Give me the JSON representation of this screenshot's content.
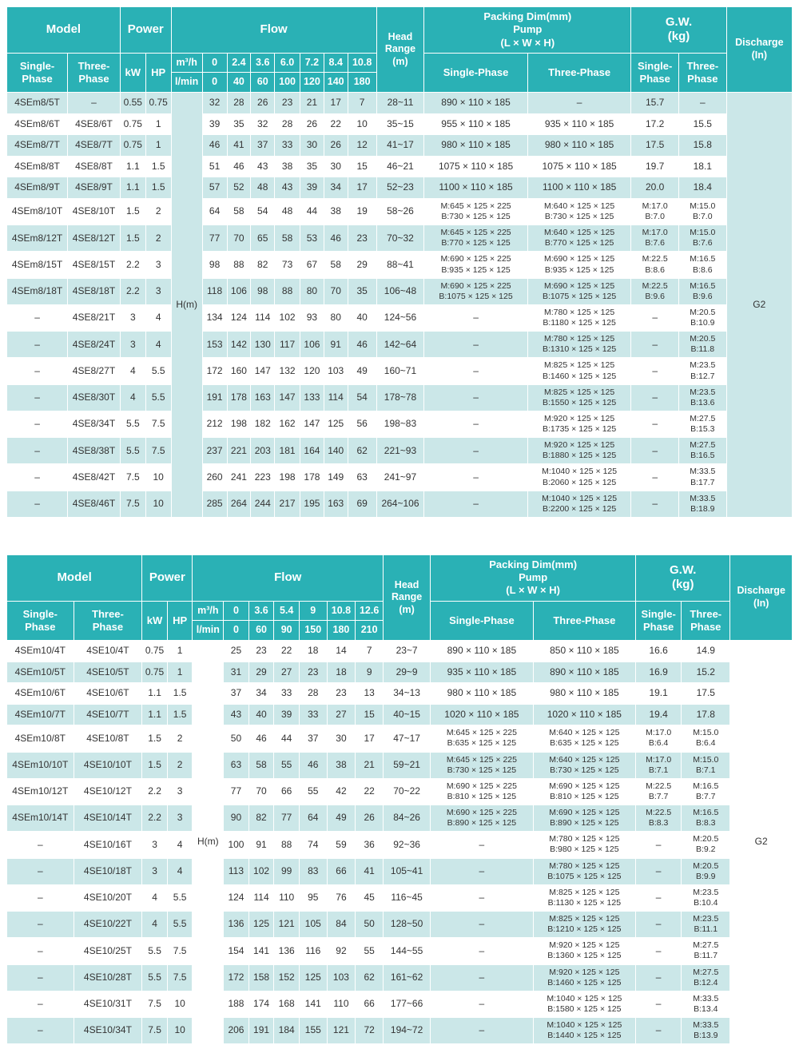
{
  "colors": {
    "header_bg": "#2ab1b5",
    "row_alt_bg": "#cbe7e8",
    "row_bg": "#ffffff",
    "header_text": "#ffffff",
    "body_text": "#333333"
  },
  "labels": {
    "model": "Model",
    "power": "Power",
    "flow": "Flow",
    "head_range": "Head\nRange\n(m)",
    "packing": "Packing Dim(mm)\nPump\n(L × W × H)",
    "gw": "G.W.\n(kg)",
    "discharge": "Discharge\n(In)",
    "single_phase_2line": "Single-\nPhase",
    "three_phase_2line": "Three-\nPhase",
    "single_phase": "Single-Phase",
    "three_phase": "Three-Phase",
    "kw": "kW",
    "hp": "HP",
    "m3h": "m³/h",
    "lmin": "l/min"
  },
  "tables": [
    {
      "series": "4SE8",
      "h_label": "H(m)",
      "discharge_value": "G2",
      "flow_m3h": [
        "0",
        "2.4",
        "3.6",
        "6.0",
        "7.2",
        "8.4",
        "10.8"
      ],
      "flow_lmin": [
        "0",
        "40",
        "60",
        "100",
        "120",
        "140",
        "180"
      ],
      "rows": [
        [
          "4SEm8/5T",
          "–",
          "0.55",
          "0.75",
          [
            "32",
            "28",
            "26",
            "23",
            "21",
            "17",
            "7"
          ],
          "28~11",
          "890 × 110 × 185",
          "–",
          "15.7",
          "–"
        ],
        [
          "4SEm8/6T",
          "4SE8/6T",
          "0.75",
          "1",
          [
            "39",
            "35",
            "32",
            "28",
            "26",
            "22",
            "10"
          ],
          "35~15",
          "955 × 110 × 185",
          "935 × 110 × 185",
          "17.2",
          "15.5"
        ],
        [
          "4SEm8/7T",
          "4SE8/7T",
          "0.75",
          "1",
          [
            "46",
            "41",
            "37",
            "33",
            "30",
            "26",
            "12"
          ],
          "41~17",
          "980 × 110 × 185",
          "980 × 110 × 185",
          "17.5",
          "15.8"
        ],
        [
          "4SEm8/8T",
          "4SE8/8T",
          "1.1",
          "1.5",
          [
            "51",
            "46",
            "43",
            "38",
            "35",
            "30",
            "15"
          ],
          "46~21",
          "1075 × 110 × 185",
          "1075 × 110 × 185",
          "19.7",
          "18.1"
        ],
        [
          "4SEm8/9T",
          "4SE8/9T",
          "1.1",
          "1.5",
          [
            "57",
            "52",
            "48",
            "43",
            "39",
            "34",
            "17"
          ],
          "52~23",
          "1100 × 110 × 185",
          "1100 × 110 × 185",
          "20.0",
          "18.4"
        ],
        [
          "4SEm8/10T",
          "4SE8/10T",
          "1.5",
          "2",
          [
            "64",
            "58",
            "54",
            "48",
            "44",
            "38",
            "19"
          ],
          "58~26",
          [
            "M:645 × 125 × 225",
            "B:730 × 125 × 125"
          ],
          [
            "M:640 × 125 × 125",
            "B:730 × 125 × 125"
          ],
          [
            "M:17.0",
            "B:7.0"
          ],
          [
            "M:15.0",
            "B:7.0"
          ]
        ],
        [
          "4SEm8/12T",
          "4SE8/12T",
          "1.5",
          "2",
          [
            "77",
            "70",
            "65",
            "58",
            "53",
            "46",
            "23"
          ],
          "70~32",
          [
            "M:645 × 125 × 225",
            "B:770 × 125 × 125"
          ],
          [
            "M:640 × 125 × 125",
            "B:770 × 125 × 125"
          ],
          [
            "M:17.0",
            "B:7.6"
          ],
          [
            "M:15.0",
            "B:7.6"
          ]
        ],
        [
          "4SEm8/15T",
          "4SE8/15T",
          "2.2",
          "3",
          [
            "98",
            "88",
            "82",
            "73",
            "67",
            "58",
            "29"
          ],
          "88~41",
          [
            "M:690 × 125 × 225",
            "B:935 × 125 × 125"
          ],
          [
            "M:690 × 125 × 125",
            "B:935 × 125 × 125"
          ],
          [
            "M:22.5",
            "B:8.6"
          ],
          [
            "M:16.5",
            "B:8.6"
          ]
        ],
        [
          "4SEm8/18T",
          "4SE8/18T",
          "2.2",
          "3",
          [
            "118",
            "106",
            "98",
            "88",
            "80",
            "70",
            "35"
          ],
          "106~48",
          [
            "M:690 × 125 × 225",
            "B:1075 × 125 × 125"
          ],
          [
            "M:690 × 125 × 125",
            "B:1075 × 125 × 125"
          ],
          [
            "M:22.5",
            "B:9.6"
          ],
          [
            "M:16.5",
            "B:9.6"
          ]
        ],
        [
          "–",
          "4SE8/21T",
          "3",
          "4",
          [
            "134",
            "124",
            "114",
            "102",
            "93",
            "80",
            "40"
          ],
          "124~56",
          "–",
          [
            "M:780 × 125 × 125",
            "B:1180 × 125 × 125"
          ],
          "–",
          [
            "M:20.5",
            "B:10.9"
          ]
        ],
        [
          "–",
          "4SE8/24T",
          "3",
          "4",
          [
            "153",
            "142",
            "130",
            "117",
            "106",
            "91",
            "46"
          ],
          "142~64",
          "–",
          [
            "M:780 × 125 × 125",
            "B:1310 × 125 × 125"
          ],
          "–",
          [
            "M:20.5",
            "B:11.8"
          ]
        ],
        [
          "–",
          "4SE8/27T",
          "4",
          "5.5",
          [
            "172",
            "160",
            "147",
            "132",
            "120",
            "103",
            "49"
          ],
          "160~71",
          "–",
          [
            "M:825 × 125 × 125",
            "B:1460 × 125 × 125"
          ],
          "–",
          [
            "M:23.5",
            "B:12.7"
          ]
        ],
        [
          "–",
          "4SE8/30T",
          "4",
          "5.5",
          [
            "191",
            "178",
            "163",
            "147",
            "133",
            "114",
            "54"
          ],
          "178~78",
          "–",
          [
            "M:825 × 125 × 125",
            "B:1550 × 125 × 125"
          ],
          "–",
          [
            "M:23.5",
            "B:13.6"
          ]
        ],
        [
          "–",
          "4SE8/34T",
          "5.5",
          "7.5",
          [
            "212",
            "198",
            "182",
            "162",
            "147",
            "125",
            "56"
          ],
          "198~83",
          "–",
          [
            "M:920 × 125 × 125",
            "B:1735 × 125 × 125"
          ],
          "–",
          [
            "M:27.5",
            "B:15.3"
          ]
        ],
        [
          "–",
          "4SE8/38T",
          "5.5",
          "7.5",
          [
            "237",
            "221",
            "203",
            "181",
            "164",
            "140",
            "62"
          ],
          "221~93",
          "–",
          [
            "M:920 × 125 × 125",
            "B:1880 × 125 × 125"
          ],
          "–",
          [
            "M:27.5",
            "B:16.5"
          ]
        ],
        [
          "–",
          "4SE8/42T",
          "7.5",
          "10",
          [
            "260",
            "241",
            "223",
            "198",
            "178",
            "149",
            "63"
          ],
          "241~97",
          "–",
          [
            "M:1040 × 125 × 125",
            "B:2060 × 125 × 125"
          ],
          "–",
          [
            "M:33.5",
            "B:17.7"
          ]
        ],
        [
          "–",
          "4SE8/46T",
          "7.5",
          "10",
          [
            "285",
            "264",
            "244",
            "217",
            "195",
            "163",
            "69"
          ],
          "264~106",
          "–",
          [
            "M:1040 × 125 × 125",
            "B:2200 × 125 × 125"
          ],
          "–",
          [
            "M:33.5",
            "B:18.9"
          ]
        ]
      ]
    },
    {
      "series": "4SE10",
      "h_label": "H(m)",
      "discharge_value": "G2",
      "flow_m3h": [
        "0",
        "3.6",
        "5.4",
        "9",
        "10.8",
        "12.6"
      ],
      "flow_lmin": [
        "0",
        "60",
        "90",
        "150",
        "180",
        "210"
      ],
      "rows": [
        [
          "4SEm10/4T",
          "4SE10/4T",
          "0.75",
          "1",
          [
            "25",
            "23",
            "22",
            "18",
            "14",
            "7"
          ],
          "23~7",
          "890 × 110 × 185",
          "850 × 110 × 185",
          "16.6",
          "14.9"
        ],
        [
          "4SEm10/5T",
          "4SE10/5T",
          "0.75",
          "1",
          [
            "31",
            "29",
            "27",
            "23",
            "18",
            "9"
          ],
          "29~9",
          "935 × 110 × 185",
          "890 × 110 × 185",
          "16.9",
          "15.2"
        ],
        [
          "4SEm10/6T",
          "4SE10/6T",
          "1.1",
          "1.5",
          [
            "37",
            "34",
            "33",
            "28",
            "23",
            "13"
          ],
          "34~13",
          "980 × 110 × 185",
          "980 × 110 × 185",
          "19.1",
          "17.5"
        ],
        [
          "4SEm10/7T",
          "4SE10/7T",
          "1.1",
          "1.5",
          [
            "43",
            "40",
            "39",
            "33",
            "27",
            "15"
          ],
          "40~15",
          "1020 × 110 × 185",
          "1020 × 110 × 185",
          "19.4",
          "17.8"
        ],
        [
          "4SEm10/8T",
          "4SE10/8T",
          "1.5",
          "2",
          [
            "50",
            "46",
            "44",
            "37",
            "30",
            "17"
          ],
          "47~17",
          [
            "M:645 × 125 × 225",
            "B:635 × 125 × 125"
          ],
          [
            "M:640 × 125 × 125",
            "B:635 × 125 × 125"
          ],
          [
            "M:17.0",
            "B:6.4"
          ],
          [
            "M:15.0",
            "B:6.4"
          ]
        ],
        [
          "4SEm10/10T",
          "4SE10/10T",
          "1.5",
          "2",
          [
            "63",
            "58",
            "55",
            "46",
            "38",
            "21"
          ],
          "59~21",
          [
            "M:645 × 125 × 225",
            "B:730 × 125 × 125"
          ],
          [
            "M:640 × 125 × 125",
            "B:730 × 125 × 125"
          ],
          [
            "M:17.0",
            "B:7.1"
          ],
          [
            "M:15.0",
            "B:7.1"
          ]
        ],
        [
          "4SEm10/12T",
          "4SE10/12T",
          "2.2",
          "3",
          [
            "77",
            "70",
            "66",
            "55",
            "42",
            "22"
          ],
          "70~22",
          [
            "M:690 × 125 × 225",
            "B:810 × 125 × 125"
          ],
          [
            "M:690 × 125 × 125",
            "B:810 × 125 × 125"
          ],
          [
            "M:22.5",
            "B:7.7"
          ],
          [
            "M:16.5",
            "B:7.7"
          ]
        ],
        [
          "4SEm10/14T",
          "4SE10/14T",
          "2.2",
          "3",
          [
            "90",
            "82",
            "77",
            "64",
            "49",
            "26"
          ],
          "84~26",
          [
            "M:690 × 125 × 225",
            "B:890 × 125 × 125"
          ],
          [
            "M:690 × 125 × 125",
            "B:890 × 125 × 125"
          ],
          [
            "M:22.5",
            "B:8.3"
          ],
          [
            "M:16.5",
            "B:8.3"
          ]
        ],
        [
          "–",
          "4SE10/16T",
          "3",
          "4",
          [
            "100",
            "91",
            "88",
            "74",
            "59",
            "36"
          ],
          "92~36",
          "–",
          [
            "M:780 × 125 × 125",
            "B:980 × 125 × 125"
          ],
          "–",
          [
            "M:20.5",
            "B:9.2"
          ]
        ],
        [
          "–",
          "4SE10/18T",
          "3",
          "4",
          [
            "113",
            "102",
            "99",
            "83",
            "66",
            "41"
          ],
          "105~41",
          "–",
          [
            "M:780 × 125 × 125",
            "B:1075 × 125 × 125"
          ],
          "–",
          [
            "M:20.5",
            "B:9.9"
          ]
        ],
        [
          "–",
          "4SE10/20T",
          "4",
          "5.5",
          [
            "124",
            "114",
            "110",
            "95",
            "76",
            "45"
          ],
          "116~45",
          "–",
          [
            "M:825 × 125 × 125",
            "B:1130 × 125 × 125"
          ],
          "–",
          [
            "M:23.5",
            "B:10.4"
          ]
        ],
        [
          "–",
          "4SE10/22T",
          "4",
          "5.5",
          [
            "136",
            "125",
            "121",
            "105",
            "84",
            "50"
          ],
          "128~50",
          "–",
          [
            "M:825 × 125 × 125",
            "B:1210 × 125 × 125"
          ],
          "–",
          [
            "M:23.5",
            "B:11.1"
          ]
        ],
        [
          "–",
          "4SE10/25T",
          "5.5",
          "7.5",
          [
            "154",
            "141",
            "136",
            "116",
            "92",
            "55"
          ],
          "144~55",
          "–",
          [
            "M:920 × 125 × 125",
            "B:1360 × 125 × 125"
          ],
          "–",
          [
            "M:27.5",
            "B:11.7"
          ]
        ],
        [
          "–",
          "4SE10/28T",
          "5.5",
          "7.5",
          [
            "172",
            "158",
            "152",
            "125",
            "103",
            "62"
          ],
          "161~62",
          "–",
          [
            "M:920 × 125 × 125",
            "B:1460 × 125 × 125"
          ],
          "–",
          [
            "M:27.5",
            "B:12.4"
          ]
        ],
        [
          "–",
          "4SE10/31T",
          "7.5",
          "10",
          [
            "188",
            "174",
            "168",
            "141",
            "110",
            "66"
          ],
          "177~66",
          "–",
          [
            "M:1040 × 125 × 125",
            "B:1580 × 125 × 125"
          ],
          "–",
          [
            "M:33.5",
            "B:13.4"
          ]
        ],
        [
          "–",
          "4SE10/34T",
          "7.5",
          "10",
          [
            "206",
            "191",
            "184",
            "155",
            "121",
            "72"
          ],
          "194~72",
          "–",
          [
            "M:1040 × 125 × 125",
            "B:1440 × 125 × 125"
          ],
          "–",
          [
            "M:33.5",
            "B:13.9"
          ]
        ]
      ]
    }
  ]
}
